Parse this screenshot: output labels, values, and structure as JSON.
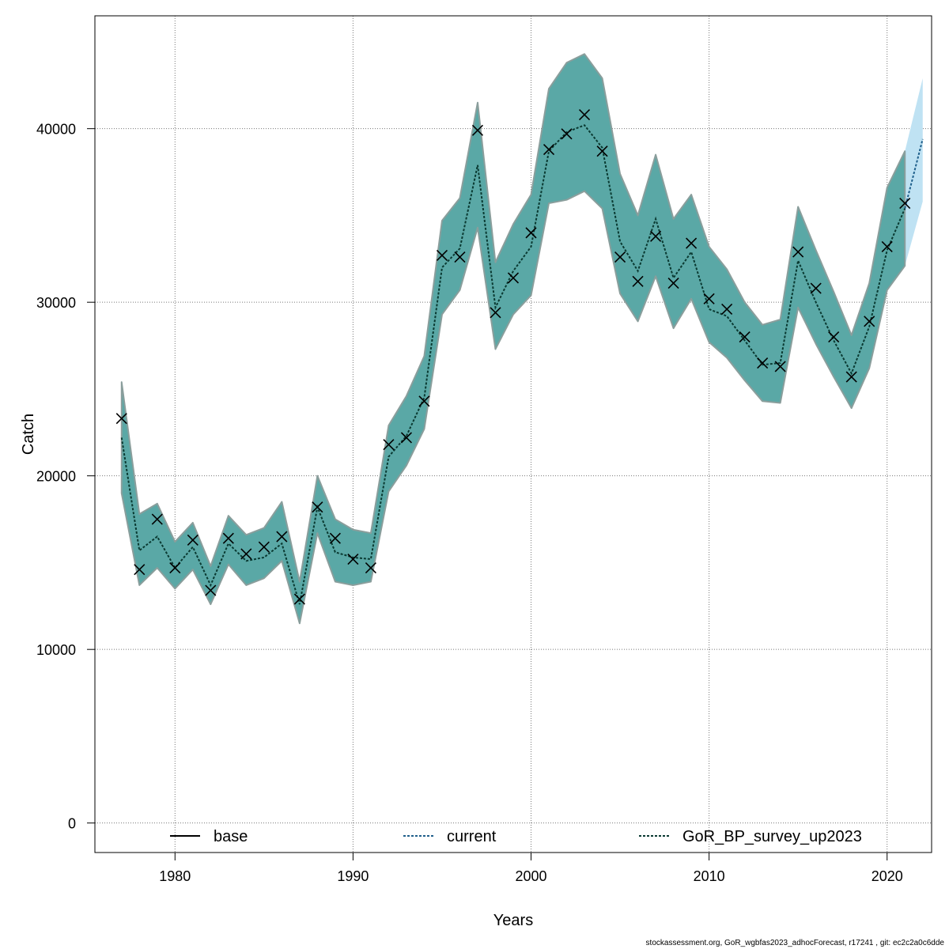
{
  "chart_data": {
    "type": "line",
    "xlabel": "Years",
    "ylabel": "Catch",
    "xlim": [
      1975.5,
      2022.5
    ],
    "ylim": [
      -1700,
      46500
    ],
    "x_ticks": [
      1980,
      1990,
      2000,
      2010,
      2020
    ],
    "y_ticks": [
      0,
      10000,
      20000,
      30000,
      40000
    ],
    "grid": true,
    "legend_position": "bottom",
    "colors": {
      "band": "#5aa8a6",
      "band_edge": "#8a9e9c",
      "forecast_band": "#bfe2f3",
      "current_line": "#1f5f8b",
      "scenario_line": "#0a3a32",
      "observed_marker": "#000000"
    },
    "legend": [
      {
        "label": "base",
        "style": "solid",
        "color": "#000000"
      },
      {
        "label": "current",
        "style": "dotted",
        "color": "#1f5f8b"
      },
      {
        "label": "GoR_BP_survey_up2023",
        "style": "dotted",
        "color": "#0a3a32"
      }
    ],
    "years": [
      1977,
      1978,
      1979,
      1980,
      1981,
      1982,
      1983,
      1984,
      1985,
      1986,
      1987,
      1988,
      1989,
      1990,
      1991,
      1992,
      1993,
      1994,
      1995,
      1996,
      1997,
      1998,
      1999,
      2000,
      2001,
      2002,
      2003,
      2004,
      2005,
      2006,
      2007,
      2008,
      2009,
      2010,
      2011,
      2012,
      2013,
      2014,
      2015,
      2016,
      2017,
      2018,
      2019,
      2020,
      2021
    ],
    "observed_catch": [
      23300,
      14600,
      17500,
      14700,
      16300,
      13400,
      16400,
      15500,
      15900,
      16500,
      12900,
      18200,
      16400,
      15200,
      14700,
      21800,
      22200,
      24300,
      32700,
      32600,
      39900,
      29400,
      31400,
      34000,
      38800,
      39700,
      40800,
      38700,
      32600,
      31200,
      33800,
      31100,
      33400,
      30200,
      29600,
      28000,
      26500,
      26300,
      32900,
      30800,
      28000,
      25700,
      28900,
      33200,
      35700
    ],
    "series": [
      {
        "name": "GoR_BP_survey_up2023",
        "x": [
          1977,
          1978,
          1979,
          1980,
          1981,
          1982,
          1983,
          1984,
          1985,
          1986,
          1987,
          1988,
          1989,
          1990,
          1991,
          1992,
          1993,
          1994,
          1995,
          1996,
          1997,
          1998,
          1999,
          2000,
          2001,
          2002,
          2003,
          2004,
          2005,
          2006,
          2007,
          2008,
          2009,
          2010,
          2011,
          2012,
          2013,
          2014,
          2015,
          2016,
          2017,
          2018,
          2019,
          2020,
          2021
        ],
        "estimate": [
          22200,
          15700,
          16500,
          14700,
          15900,
          13700,
          16100,
          15100,
          15300,
          16100,
          12600,
          18200,
          15600,
          15300,
          15200,
          21100,
          22300,
          24500,
          32000,
          33100,
          37900,
          29700,
          31800,
          33200,
          38700,
          39800,
          40200,
          38900,
          33500,
          31800,
          34800,
          31400,
          32900,
          29600,
          29200,
          27800,
          26400,
          26500,
          32400,
          30000,
          27800,
          25900,
          28600,
          33000,
          35400
        ],
        "lower": [
          19000,
          13700,
          14700,
          13500,
          14600,
          12600,
          14900,
          13700,
          14100,
          15100,
          11500,
          16700,
          13900,
          13700,
          13900,
          19100,
          20600,
          22700,
          29300,
          30700,
          34300,
          27300,
          29300,
          30400,
          35700,
          35900,
          36400,
          35400,
          30500,
          28900,
          31500,
          28500,
          30200,
          27700,
          26800,
          25500,
          24300,
          24200,
          29700,
          27600,
          25700,
          23900,
          26200,
          30700,
          32100
        ],
        "upper": [
          25400,
          17800,
          18400,
          16200,
          17300,
          14800,
          17700,
          16600,
          17000,
          18500,
          13900,
          20000,
          17500,
          16900,
          16700,
          22900,
          24600,
          26900,
          34700,
          36000,
          41500,
          32300,
          34500,
          36200,
          42300,
          43800,
          44300,
          42900,
          37400,
          35000,
          38500,
          34800,
          36200,
          33200,
          31900,
          30000,
          28700,
          29000,
          35500,
          33000,
          30600,
          28100,
          31100,
          36600,
          38700
        ]
      },
      {
        "name": "current",
        "x": [
          2021,
          2022
        ],
        "estimate": [
          35400,
          39400
        ],
        "lower": [
          32100,
          35800
        ],
        "upper": [
          38700,
          42900
        ]
      }
    ]
  },
  "footer": "stockassessment.org, GoR_wgbfas2023_adhocForecast, r17241 , git: ec2c2a0c6dde"
}
